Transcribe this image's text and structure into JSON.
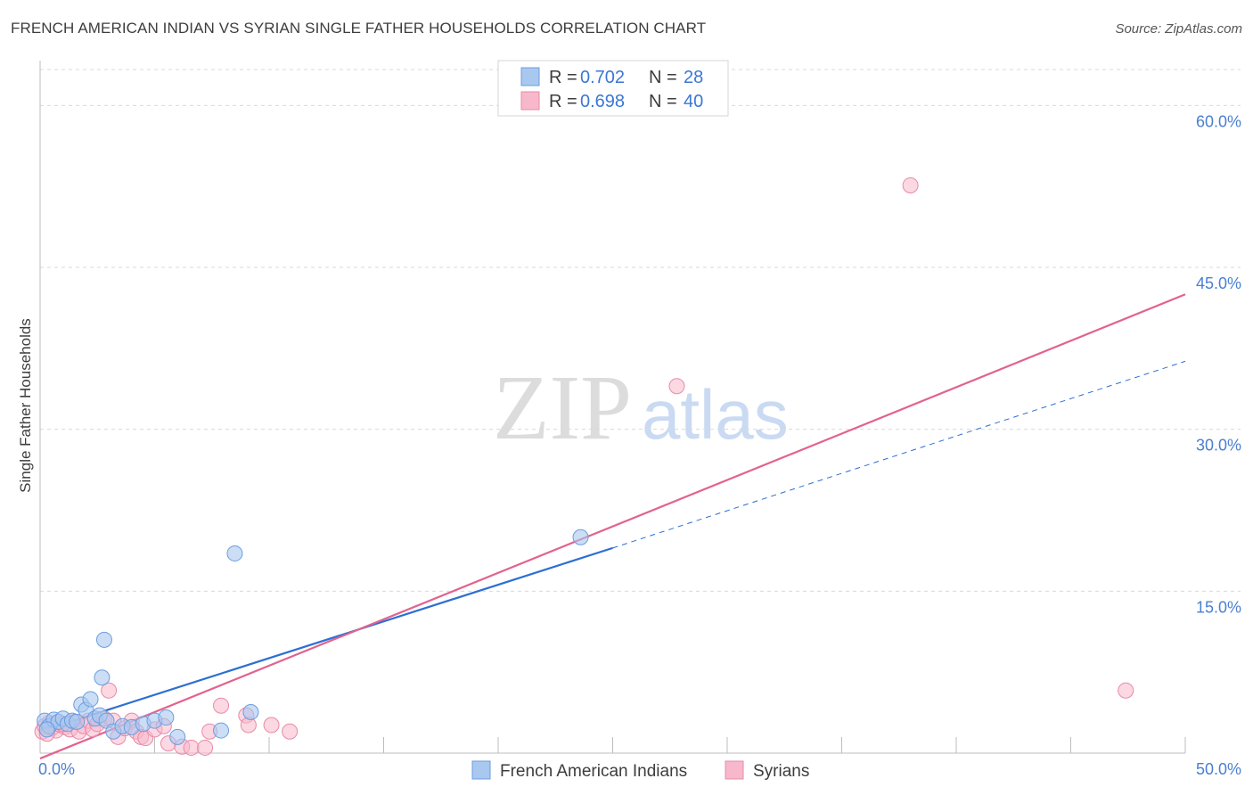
{
  "title": "FRENCH AMERICAN INDIAN VS SYRIAN SINGLE FATHER HOUSEHOLDS CORRELATION CHART",
  "source": "Source: ZipAtlas.com",
  "watermark": {
    "zip": "ZIP",
    "atlas": "atlas"
  },
  "colors": {
    "blue_fill": "#a9c8f0",
    "blue_stroke": "#6b9de0",
    "blue_line": "#2d6fd2",
    "pink_fill": "#f7b8cb",
    "pink_stroke": "#e98aa8",
    "pink_line": "#e2628f",
    "axis_text": "#4a7fd0",
    "grid": "#d9d9d9"
  },
  "chart_data": {
    "type": "scatter",
    "title": "FRENCH AMERICAN INDIAN VS SYRIAN SINGLE FATHER HOUSEHOLDS CORRELATION CHART",
    "xlabel": "",
    "ylabel": "Single Father Households",
    "xlim": [
      0,
      50
    ],
    "ylim": [
      0,
      63
    ],
    "x_tick_labels": [
      "0.0%",
      "50.0%"
    ],
    "y_ticks": [
      15,
      30,
      45,
      60
    ],
    "y_tick_labels": [
      "15.0%",
      "30.0%",
      "45.0%",
      "60.0%"
    ],
    "legend": [
      {
        "label": "French American Indians",
        "r_label": "R =",
        "r": "0.702",
        "n_label": "N =",
        "n": "28"
      },
      {
        "label": "Syrians",
        "r_label": "R =",
        "r": "0.698",
        "n_label": "N =",
        "n": "40"
      }
    ],
    "series": [
      {
        "name": "French American Indians",
        "points": [
          [
            0.2,
            3.0
          ],
          [
            0.4,
            2.5
          ],
          [
            0.6,
            3.1
          ],
          [
            0.8,
            2.9
          ],
          [
            1.0,
            3.2
          ],
          [
            1.2,
            2.7
          ],
          [
            1.4,
            3.0
          ],
          [
            1.6,
            2.9
          ],
          [
            1.8,
            4.5
          ],
          [
            2.0,
            4.0
          ],
          [
            2.2,
            5.0
          ],
          [
            2.4,
            3.2
          ],
          [
            2.6,
            3.5
          ],
          [
            2.7,
            7.0
          ],
          [
            2.8,
            10.5
          ],
          [
            2.9,
            3.0
          ],
          [
            3.2,
            2.0
          ],
          [
            3.6,
            2.5
          ],
          [
            4.0,
            2.4
          ],
          [
            4.5,
            2.7
          ],
          [
            5.0,
            3.0
          ],
          [
            5.5,
            3.3
          ],
          [
            6.0,
            1.5
          ],
          [
            7.9,
            2.1
          ],
          [
            8.5,
            18.5
          ],
          [
            9.2,
            3.8
          ],
          [
            23.6,
            20.0
          ],
          [
            0.3,
            2.2
          ]
        ],
        "trend": {
          "x0": 0,
          "y0": 2.0,
          "x1": 25,
          "y1": 19.0,
          "x2": 50,
          "y2": 36.3
        }
      },
      {
        "name": "Syrians",
        "points": [
          [
            0.1,
            2.0
          ],
          [
            0.2,
            2.5
          ],
          [
            0.4,
            2.8
          ],
          [
            0.5,
            2.3
          ],
          [
            0.7,
            2.1
          ],
          [
            0.9,
            2.6
          ],
          [
            1.1,
            2.4
          ],
          [
            1.3,
            2.2
          ],
          [
            1.5,
            2.9
          ],
          [
            1.7,
            2.0
          ],
          [
            1.9,
            2.5
          ],
          [
            2.1,
            3.0
          ],
          [
            2.3,
            2.2
          ],
          [
            2.5,
            2.7
          ],
          [
            2.8,
            3.2
          ],
          [
            3.0,
            5.8
          ],
          [
            3.2,
            3.0
          ],
          [
            3.4,
            1.5
          ],
          [
            3.7,
            2.3
          ],
          [
            4.0,
            3.0
          ],
          [
            4.2,
            2.0
          ],
          [
            4.4,
            1.5
          ],
          [
            4.6,
            1.4
          ],
          [
            5.0,
            2.2
          ],
          [
            5.4,
            2.5
          ],
          [
            5.6,
            0.9
          ],
          [
            6.2,
            0.6
          ],
          [
            6.6,
            0.5
          ],
          [
            7.2,
            0.5
          ],
          [
            7.4,
            2.0
          ],
          [
            7.9,
            4.4
          ],
          [
            9.0,
            3.5
          ],
          [
            9.1,
            2.6
          ],
          [
            10.1,
            2.6
          ],
          [
            10.9,
            2.0
          ],
          [
            27.8,
            34.0
          ],
          [
            38.0,
            52.6
          ],
          [
            47.4,
            5.8
          ],
          [
            0.3,
            1.8
          ],
          [
            1.0,
            2.7
          ]
        ],
        "trend": {
          "x0": 0,
          "y0": -0.5,
          "x1": 50,
          "y1": 42.5
        }
      }
    ]
  }
}
